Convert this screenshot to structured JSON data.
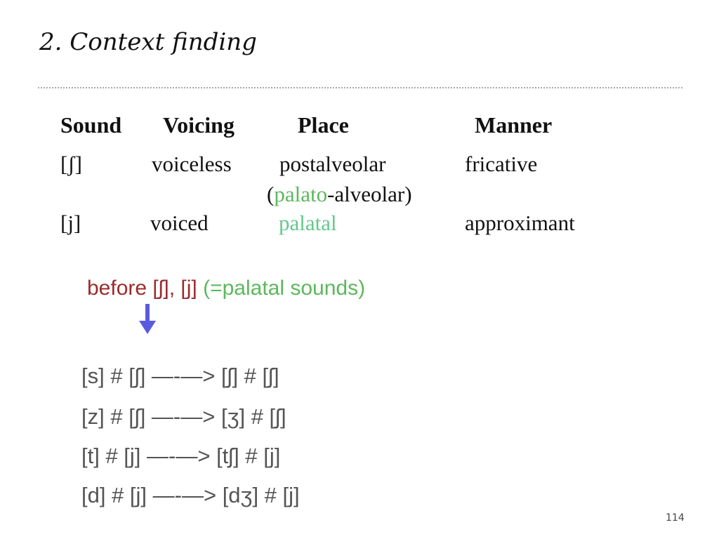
{
  "slide": {
    "title": "2. Context finding",
    "page_number": "114"
  },
  "table": {
    "headers": {
      "sound": "Sound",
      "voicing": "Voicing",
      "place": "Place",
      "manner": "Manner"
    },
    "rows": [
      {
        "sound": "[ʃ]",
        "voicing": "voiceless",
        "place": "postalveolar",
        "place_note_open": "(",
        "place_note_highlight": "palato",
        "place_note_rest": "-alveolar)",
        "manner": "fricative"
      },
      {
        "sound": "[j]",
        "voicing": "voiced",
        "place": "palatal",
        "manner": "approximant"
      }
    ]
  },
  "note": {
    "before_text": "before [ʃ], [j]",
    "palatal_text": "(=palatal sounds)"
  },
  "rules": [
    "[s] # [ʃ] —-—> [ʃ] # [ʃ]",
    "[z] # [ʃ] —-—> [ʒ] # [ʃ]",
    "[t] # [j] —-—> [tʃ] # [j]",
    "[d] # [j] —-—> [dʒ] # [j]"
  ],
  "colors": {
    "highlight_green": "#5cb85c",
    "palatal_green": "#64c88c",
    "before_red": "#9b2c2c",
    "arrow_blue": "#5a5ae0",
    "rule_gray": "#545454"
  },
  "icons": {
    "down_arrow": "arrow-down-icon"
  }
}
